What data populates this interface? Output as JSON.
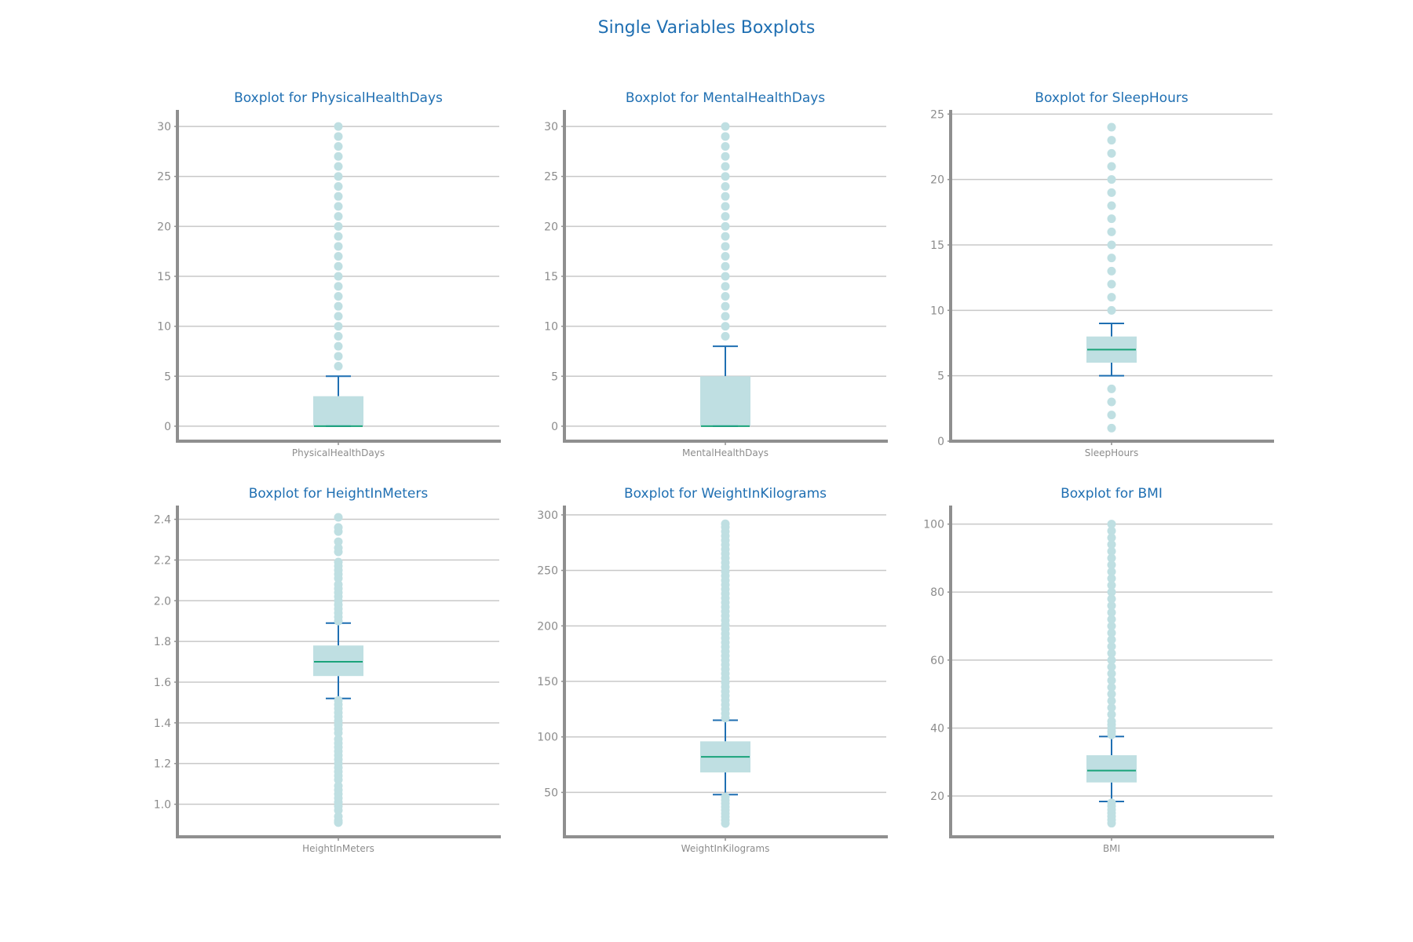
{
  "figure": {
    "title": "Single Variables Boxplots",
    "colors": {
      "title": "#1f6fb2",
      "box_fill": "#bfdfe2",
      "median": "#1aa37a",
      "whisker": "#1f6fb2",
      "outlier": "#bfdfe2",
      "grid": "#c8c8c8",
      "axis": "#8f8f8f",
      "tick_text": "#8c8c8c"
    }
  },
  "chart_data": [
    {
      "type": "box",
      "title": "Boxplot for PhysicalHealthDays",
      "category": "PhysicalHealthDays",
      "ylim": [
        -1.5,
        31.5
      ],
      "yticks": [
        0,
        5,
        10,
        15,
        20,
        25,
        30
      ],
      "ytick_labels": [
        "0",
        "5",
        "10",
        "15",
        "20",
        "25",
        "30"
      ],
      "grid": true,
      "box": {
        "whisker_low": 0,
        "q1": 0,
        "median": 0,
        "q3": 3,
        "whisker_high": 5
      },
      "outliers": [
        6,
        7,
        8,
        9,
        10,
        11,
        12,
        13,
        14,
        15,
        16,
        17,
        18,
        19,
        20,
        21,
        22,
        23,
        24,
        25,
        26,
        27,
        28,
        29,
        30
      ]
    },
    {
      "type": "box",
      "title": "Boxplot for MentalHealthDays",
      "category": "MentalHealthDays",
      "ylim": [
        -1.5,
        31.5
      ],
      "yticks": [
        0,
        5,
        10,
        15,
        20,
        25,
        30
      ],
      "ytick_labels": [
        "0",
        "5",
        "10",
        "15",
        "20",
        "25",
        "30"
      ],
      "grid": true,
      "box": {
        "whisker_low": 0,
        "q1": 0,
        "median": 0,
        "q3": 5,
        "whisker_high": 8
      },
      "outliers": [
        9,
        10,
        11,
        12,
        13,
        14,
        15,
        16,
        17,
        18,
        19,
        20,
        21,
        22,
        23,
        24,
        25,
        26,
        27,
        28,
        29,
        30
      ]
    },
    {
      "type": "box",
      "title": "Boxplot for SleepHours",
      "category": "SleepHours",
      "ylim": [
        0,
        25.2
      ],
      "yticks": [
        0,
        5,
        10,
        15,
        20,
        25
      ],
      "ytick_labels": [
        "0",
        "5",
        "10",
        "15",
        "20",
        "25"
      ],
      "grid": true,
      "box": {
        "whisker_low": 5,
        "q1": 6,
        "median": 7,
        "q3": 8,
        "whisker_high": 9
      },
      "outliers": [
        1,
        2,
        3,
        4,
        10,
        11,
        12,
        13,
        14,
        15,
        16,
        17,
        18,
        19,
        20,
        21,
        22,
        23,
        24
      ]
    },
    {
      "type": "box",
      "title": "Boxplot for HeightInMeters",
      "category": "HeightInMeters",
      "ylim": [
        0.84,
        2.46
      ],
      "yticks": [
        1.0,
        1.2,
        1.4,
        1.6,
        1.8,
        2.0,
        2.2,
        2.4
      ],
      "ytick_labels": [
        "1.0",
        "1.2",
        "1.4",
        "1.6",
        "1.8",
        "2.0",
        "2.2",
        "2.4"
      ],
      "grid": true,
      "box": {
        "whisker_low": 1.52,
        "q1": 1.63,
        "median": 1.7,
        "q3": 1.78,
        "whisker_high": 1.89
      },
      "outliers": [
        0.91,
        0.92,
        0.94,
        0.97,
        0.99,
        1.01,
        1.03,
        1.05,
        1.07,
        1.09,
        1.12,
        1.14,
        1.16,
        1.18,
        1.2,
        1.22,
        1.24,
        1.26,
        1.28,
        1.3,
        1.32,
        1.35,
        1.37,
        1.39,
        1.41,
        1.43,
        1.45,
        1.47,
        1.49,
        1.51,
        1.9,
        1.92,
        1.94,
        1.96,
        1.98,
        2.0,
        2.02,
        2.04,
        2.06,
        2.08,
        2.11,
        2.13,
        2.15,
        2.17,
        2.19,
        2.24,
        2.26,
        2.29,
        2.34,
        2.36,
        2.41
      ]
    },
    {
      "type": "box",
      "title": "Boxplot for WeightInKilograms",
      "category": "WeightInKilograms",
      "ylim": [
        10,
        307
      ],
      "yticks": [
        50,
        100,
        150,
        200,
        250,
        300
      ],
      "ytick_labels": [
        "50",
        "100",
        "150",
        "200",
        "250",
        "300"
      ],
      "grid": true,
      "box": {
        "whisker_low": 48,
        "q1": 68,
        "median": 82,
        "q3": 96,
        "whisker_high": 115
      },
      "outliers": [
        22,
        25,
        28,
        31,
        34,
        37,
        40,
        43,
        46,
        117,
        121,
        125,
        129,
        133,
        137,
        141,
        145,
        149,
        153,
        157,
        161,
        165,
        169,
        173,
        177,
        181,
        185,
        189,
        193,
        197,
        201,
        205,
        209,
        213,
        217,
        221,
        225,
        229,
        233,
        237,
        241,
        245,
        249,
        253,
        257,
        261,
        265,
        269,
        273,
        277,
        281,
        285,
        289,
        292
      ]
    },
    {
      "type": "box",
      "title": "Boxplot for BMI",
      "category": "BMI",
      "ylim": [
        8,
        105
      ],
      "yticks": [
        20,
        40,
        60,
        80,
        100
      ],
      "ytick_labels": [
        "20",
        "40",
        "60",
        "80",
        "100"
      ],
      "grid": true,
      "box": {
        "whisker_low": 18.4,
        "q1": 24,
        "median": 27.5,
        "q3": 32,
        "whisker_high": 37.5
      },
      "outliers": [
        12,
        13,
        14,
        15,
        16,
        17,
        18,
        38,
        39,
        40,
        41,
        42,
        44,
        46,
        48,
        50,
        52,
        54,
        56,
        58,
        60,
        62,
        64,
        66,
        68,
        70,
        72,
        74,
        76,
        78,
        80,
        82,
        84,
        86,
        88,
        90,
        92,
        94,
        96,
        98,
        100
      ]
    }
  ]
}
